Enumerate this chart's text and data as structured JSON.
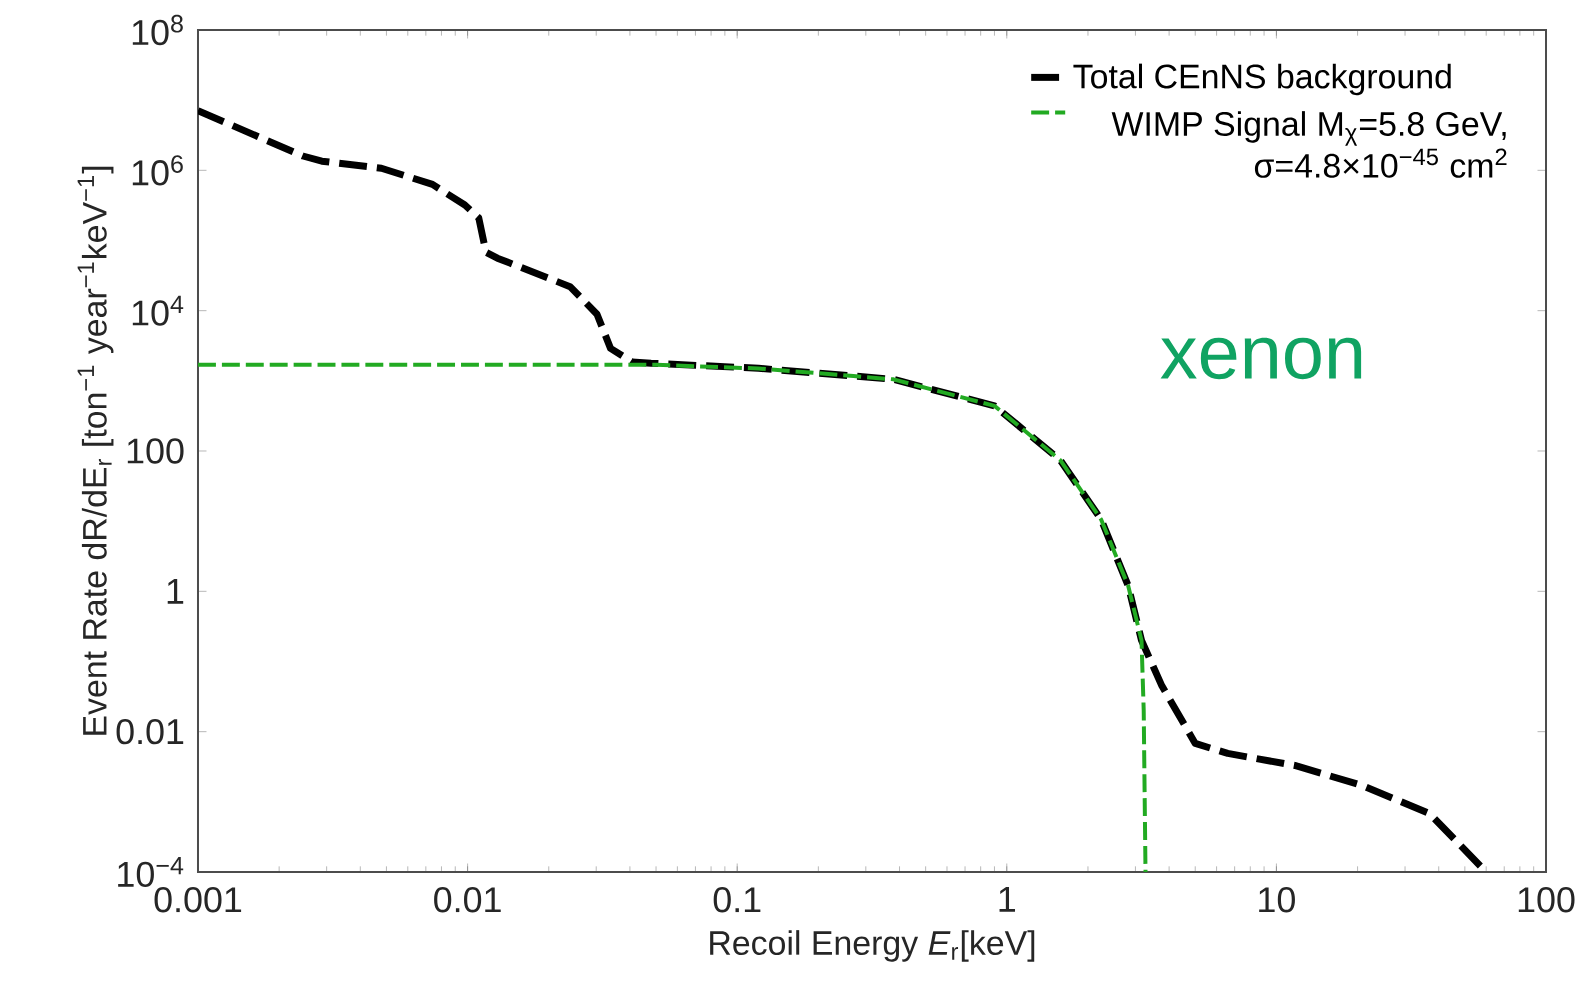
{
  "chart_data": {
    "type": "line",
    "xlabel": "Recoil Energy *E*$_{r}$[keV]",
    "ylabel": "Event Rate dR/dE$_{r}$ [ton$^{−1}$ year$^{−1}$keV$^{−1}$]",
    "log": "xy",
    "legend": "top right",
    "line_style": "dashed",
    "xlim": [
      0.001,
      100
    ],
    "ylim": [
      0.0001,
      100000000
    ],
    "xticks": [
      {
        "value": 0.001,
        "label": "0.001"
      },
      {
        "value": 0.01,
        "label": "0.01"
      },
      {
        "value": 0.1,
        "label": "0.1"
      },
      {
        "value": 1,
        "label": "1"
      },
      {
        "value": 10,
        "label": "10"
      },
      {
        "value": 100,
        "label": "100"
      }
    ],
    "yticks": [
      {
        "value": 0.0001,
        "label": "10$^{−4}$"
      },
      {
        "value": 0.01,
        "label": "0.01"
      },
      {
        "value": 1,
        "label": "1"
      },
      {
        "value": 100,
        "label": "100"
      },
      {
        "value": 10000,
        "label": "10$^{4}$"
      },
      {
        "value": 1000000,
        "label": "10$^{6}$"
      },
      {
        "value": 100000000,
        "label": "10$^{8}$"
      }
    ],
    "series": [
      {
        "name": "Total CEnNS background",
        "color": "#000000",
        "x": [
          0.001,
          0.00245,
          0.00288,
          0.00479,
          0.00741,
          0.00977,
          0.011,
          0.0117,
          0.0129,
          0.024,
          0.0302,
          0.0339,
          0.0407,
          0.0479,
          0.12,
          0.27,
          0.38,
          0.9,
          1.58,
          2.24,
          2.82,
          3.16,
          3.76,
          5.0,
          6.6,
          11.7,
          20.9,
          37,
          60
        ],
        "values": [
          7100000,
          1600000,
          1350000,
          1070000,
          630000,
          320000,
          210000,
          68000,
          56000,
          22000,
          8900,
          2900,
          1860,
          1780,
          1510,
          1170,
          1050,
          440,
          74,
          10.5,
          1.2,
          0.2,
          0.045,
          0.0068,
          0.0049,
          0.0033,
          0.0017,
          0.00068,
          0.0001
        ]
      },
      {
        "name": "WIMP Signal M$_{χ}$=5.8 GeV, σ=4.8×10$^{−45}$ cm$^{2}$",
        "color": "#22aa22",
        "x": [
          0.001,
          0.01,
          0.05,
          0.12,
          0.27,
          0.38,
          0.9,
          1.58,
          2.24,
          2.82,
          3.16,
          3.22,
          3.27
        ],
        "values": [
          1700,
          1700,
          1690,
          1500,
          1170,
          1050,
          440,
          74,
          10.5,
          1.2,
          0.2,
          0.02,
          0.0001
        ]
      }
    ],
    "annotations": [
      "xenon"
    ]
  }
}
